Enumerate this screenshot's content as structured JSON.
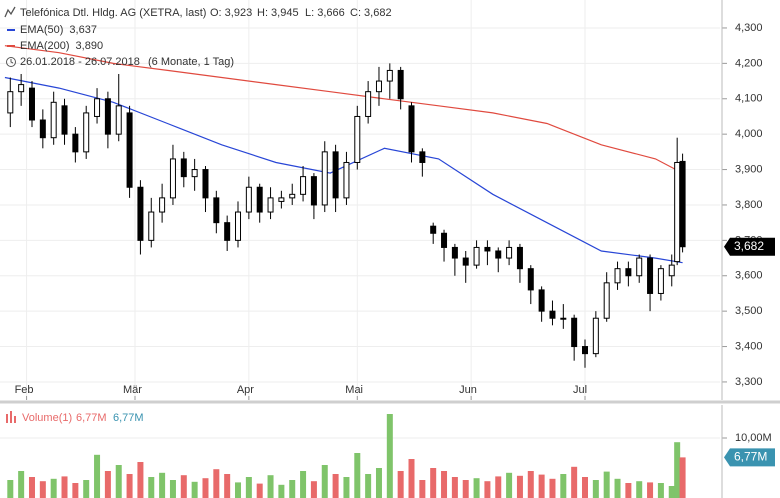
{
  "chart_data": [
    {
      "type": "candlestick",
      "title": "Telefónica Dtl. Hldg. AG (XETRA, last)",
      "ohlc_labels": [
        "O: 3,923",
        "H: 3,945",
        "L: 3,666",
        "C: 3,682"
      ],
      "date_range": "26.01.2018 - 26.07.2018",
      "period": "(6 Monate, 1 Tag)",
      "up_color": "#ffffff",
      "down_color": "#000000",
      "x": [
        1,
        3,
        5,
        7,
        9,
        11,
        13,
        15,
        17,
        19,
        21,
        23,
        25,
        27,
        29,
        31,
        33,
        35,
        37,
        39,
        41,
        43,
        45,
        47,
        49,
        51,
        53,
        55,
        57,
        59,
        61,
        63,
        65,
        67,
        69,
        71,
        73,
        75,
        77,
        79,
        81,
        83,
        85,
        87,
        89,
        91,
        93,
        95,
        97,
        99,
        101,
        103,
        105,
        107,
        109,
        111,
        113,
        115,
        117,
        119,
        121,
        123,
        124,
        125
      ],
      "open": [
        4.06,
        4.12,
        4.13,
        4.04,
        3.99,
        4.08,
        4.0,
        3.95,
        4.05,
        4.1,
        4.0,
        4.06,
        3.85,
        3.7,
        3.78,
        3.82,
        3.93,
        3.88,
        3.9,
        3.82,
        3.75,
        3.7,
        3.78,
        3.85,
        3.78,
        3.81,
        3.82,
        3.83,
        3.88,
        3.8,
        3.95,
        3.82,
        3.92,
        4.05,
        4.12,
        4.15,
        4.18,
        4.08,
        3.95,
        3.74,
        3.72,
        3.68,
        3.65,
        3.63,
        3.68,
        3.67,
        3.65,
        3.68,
        3.62,
        3.56,
        3.5,
        3.48,
        3.48,
        3.4,
        3.38,
        3.48,
        3.58,
        3.62,
        3.6,
        3.65,
        3.55,
        3.6,
        3.64,
        3.923
      ],
      "high": [
        4.16,
        4.17,
        4.15,
        4.07,
        4.12,
        4.1,
        4.02,
        4.08,
        4.13,
        4.12,
        4.17,
        4.08,
        3.87,
        3.82,
        3.86,
        3.97,
        3.95,
        3.93,
        3.91,
        3.84,
        3.77,
        3.81,
        3.88,
        3.86,
        3.85,
        3.84,
        3.86,
        3.91,
        3.89,
        3.98,
        3.97,
        3.95,
        4.08,
        4.15,
        4.19,
        4.2,
        4.19,
        4.09,
        3.96,
        3.75,
        3.73,
        3.69,
        3.67,
        3.7,
        3.7,
        3.68,
        3.7,
        3.69,
        3.63,
        3.57,
        3.53,
        3.52,
        3.49,
        3.42,
        3.5,
        3.61,
        3.64,
        3.64,
        3.66,
        3.66,
        3.63,
        3.66,
        3.99,
        3.945
      ],
      "low": [
        4.02,
        4.08,
        4.02,
        3.96,
        3.97,
        3.97,
        3.92,
        3.93,
        4.03,
        3.96,
        3.98,
        3.82,
        3.66,
        3.68,
        3.75,
        3.8,
        3.85,
        3.84,
        3.78,
        3.72,
        3.67,
        3.68,
        3.76,
        3.75,
        3.76,
        3.79,
        3.8,
        3.81,
        3.76,
        3.78,
        3.78,
        3.8,
        3.9,
        4.03,
        4.08,
        4.1,
        4.07,
        3.92,
        3.88,
        3.69,
        3.64,
        3.6,
        3.58,
        3.62,
        3.63,
        3.61,
        3.63,
        3.58,
        3.52,
        3.47,
        3.46,
        3.45,
        3.36,
        3.34,
        3.37,
        3.47,
        3.56,
        3.57,
        3.58,
        3.5,
        3.53,
        3.57,
        3.63,
        3.666
      ],
      "close": [
        4.12,
        4.14,
        4.04,
        3.99,
        4.09,
        4.0,
        3.95,
        4.06,
        4.1,
        4.0,
        4.08,
        3.85,
        3.7,
        3.78,
        3.82,
        3.93,
        3.88,
        3.9,
        3.82,
        3.75,
        3.7,
        3.78,
        3.85,
        3.78,
        3.82,
        3.82,
        3.83,
        3.88,
        3.8,
        3.95,
        3.82,
        3.92,
        4.05,
        4.12,
        4.15,
        4.18,
        4.1,
        3.95,
        3.92,
        3.72,
        3.68,
        3.65,
        3.63,
        3.68,
        3.67,
        3.65,
        3.68,
        3.62,
        3.56,
        3.5,
        3.48,
        3.48,
        3.4,
        3.38,
        3.48,
        3.58,
        3.62,
        3.6,
        3.65,
        3.55,
        3.62,
        3.63,
        3.92,
        3.682
      ],
      "last_label": "3,682",
      "lines": [
        {
          "name": "EMA(50)",
          "color": "#2846d6",
          "value_label": "3,637",
          "x": [
            0,
            10,
            20,
            30,
            40,
            50,
            60,
            70,
            80,
            90,
            100,
            110,
            120,
            125
          ],
          "values": [
            4.16,
            4.13,
            4.09,
            4.03,
            3.97,
            3.92,
            3.89,
            3.96,
            3.93,
            3.83,
            3.75,
            3.67,
            3.65,
            3.637
          ]
        },
        {
          "name": "EMA(200)",
          "color": "#e04a3f",
          "value_label": "3,890",
          "x": [
            0,
            10,
            20,
            30,
            40,
            50,
            60,
            70,
            80,
            90,
            100,
            110,
            120,
            125
          ],
          "values": [
            4.25,
            4.23,
            4.2,
            4.18,
            4.16,
            4.14,
            4.12,
            4.1,
            4.08,
            4.06,
            4.03,
            3.97,
            3.93,
            3.89
          ]
        }
      ],
      "xlim": [
        -0.9,
        131.9
      ],
      "xticks": [
        {
          "value": 4,
          "label": "Feb"
        },
        {
          "value": 24,
          "label": "Mär"
        },
        {
          "value": 45,
          "label": "Apr"
        },
        {
          "value": 65,
          "label": "Mai"
        },
        {
          "value": 86,
          "label": "Jun"
        },
        {
          "value": 107,
          "label": "Jul"
        }
      ],
      "ylim": [
        3.249,
        4.379
      ],
      "yticks": [
        {
          "value": 3.3,
          "label": "3,300"
        },
        {
          "value": 3.4,
          "label": "3,400"
        },
        {
          "value": 3.5,
          "label": "3,500"
        },
        {
          "value": 3.6,
          "label": "3,600"
        },
        {
          "value": 3.7,
          "label": "3,700"
        },
        {
          "value": 3.8,
          "label": "3,800"
        },
        {
          "value": 3.9,
          "label": "3,900"
        },
        {
          "value": 4.0,
          "label": "4,000"
        },
        {
          "value": 4.1,
          "label": "4,100"
        },
        {
          "value": 4.2,
          "label": "4,200"
        },
        {
          "value": 4.3,
          "label": "4,300"
        }
      ],
      "grid": true
    },
    {
      "type": "bar",
      "title": "Volume(1)",
      "up_color": "#7fc46a",
      "down_color": "#e86a6a",
      "tag_color": "#3a93b0",
      "values": [
        3.0,
        4.5,
        3.5,
        2.8,
        3.2,
        3.6,
        2.5,
        3.0,
        7.2,
        4.5,
        5.5,
        4.0,
        6.0,
        3.5,
        4.2,
        3.0,
        3.8,
        2.7,
        3.3,
        4.8,
        4.0,
        2.6,
        3.5,
        2.4,
        3.8,
        2.2,
        3.0,
        4.5,
        2.8,
        5.5,
        4.0,
        3.5,
        7.5,
        4.0,
        5.0,
        14.0,
        4.5,
        6.5,
        3.0,
        5.0,
        4.5,
        3.5,
        3.0,
        3.3,
        2.8,
        3.6,
        4.2,
        3.7,
        4.5,
        3.9,
        3.2,
        4.0,
        5.2,
        3.5,
        3.0,
        4.4,
        3.2,
        2.5,
        2.8,
        2.6,
        2.5,
        2.0,
        9.3,
        6.77
      ],
      "legend_value": "6,77M",
      "last_label": "6,77M",
      "ylim": [
        0,
        15.5
      ],
      "yticks": [
        {
          "value": 10,
          "label": "10,00M"
        }
      ]
    }
  ]
}
